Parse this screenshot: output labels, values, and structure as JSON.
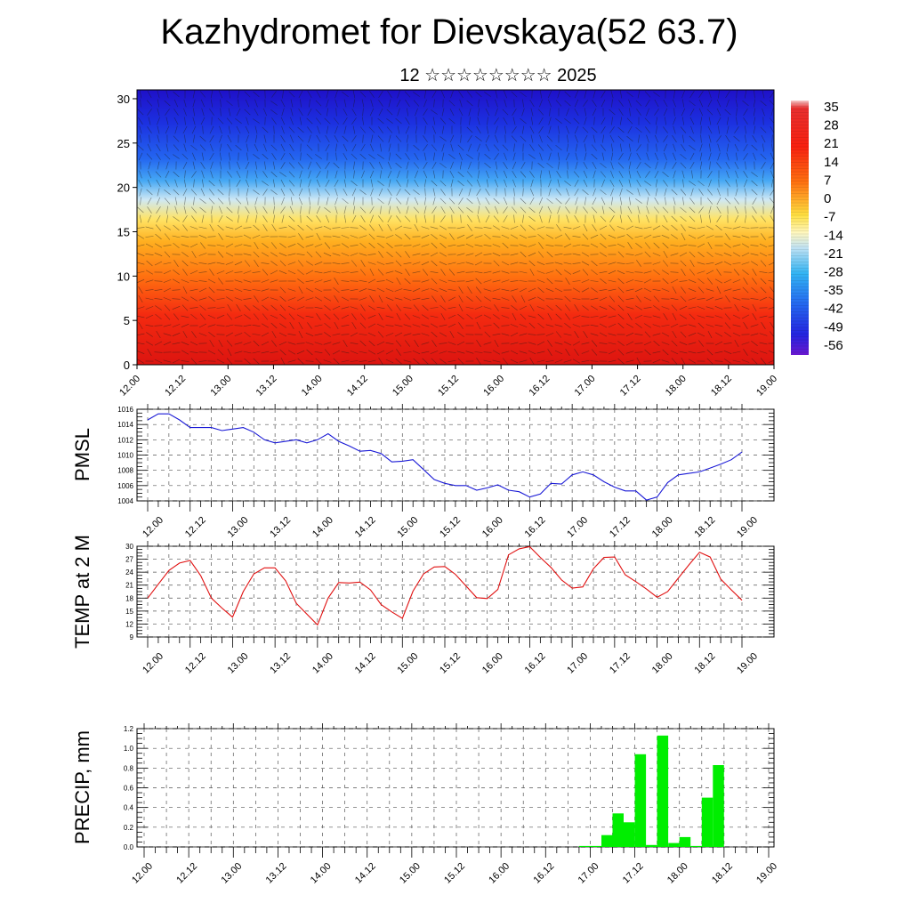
{
  "title": "Kazhydromet for Dievskaya(52 63.7)",
  "subtitle": "12 ☆☆☆☆☆☆☆☆ 2025",
  "colors": {
    "pmsl_line": "#1a1ad6",
    "temp_line": "#e01010",
    "precip_bar": "#00ee00"
  },
  "chart_data": [
    {
      "type": "heatmap",
      "name": "cross-section",
      "x_tick_labels": [
        "12.00",
        "12.12",
        "13.00",
        "13.12",
        "14.00",
        "14.12",
        "15.00",
        "15.12",
        "16.00",
        "16.12",
        "17.00",
        "17.12",
        "18.00",
        "18.12",
        "19.00"
      ],
      "y_tick_labels": [
        "0",
        "5",
        "10",
        "15",
        "20",
        "25",
        "30"
      ],
      "ylim": [
        0,
        31
      ],
      "colorbar": {
        "labels": [
          "35",
          "28",
          "21",
          "14",
          "7",
          "0",
          "-7",
          "-14",
          "-21",
          "-28",
          "-35",
          "-42",
          "-49",
          "-56"
        ],
        "range": [
          -60,
          35
        ]
      }
    },
    {
      "type": "line",
      "name": "pmsl",
      "ylabel": "PMSL",
      "ylim": [
        1004,
        1016
      ],
      "y_tick_labels": [
        "1004",
        "1006",
        "1008",
        "1010",
        "1012",
        "1014",
        "1016"
      ],
      "x_tick_labels": [
        "12.00",
        "12.12",
        "13.00",
        "13.12",
        "14.00",
        "14.12",
        "15.00",
        "15.12",
        "16.00",
        "16.12",
        "17.00",
        "17.12",
        "18.00",
        "18.12",
        "19.00"
      ],
      "x": [
        0,
        3,
        6,
        9,
        12,
        15,
        18,
        21,
        24,
        27,
        30,
        33,
        36,
        39,
        42,
        45,
        48,
        51,
        54,
        57,
        60,
        63,
        66,
        69,
        72,
        75,
        78,
        81,
        84,
        87,
        90,
        93,
        96,
        99,
        102,
        105,
        108,
        111,
        114,
        117,
        120,
        123,
        126,
        129,
        132,
        135,
        138,
        141,
        144,
        147,
        150,
        153,
        156,
        159,
        162,
        165,
        168
      ],
      "values": [
        1014.6,
        1015.4,
        1015.4,
        1014.6,
        1013.6,
        1013.6,
        1013.6,
        1013.2,
        1013.4,
        1013.6,
        1013.0,
        1012.0,
        1011.6,
        1011.8,
        1012.0,
        1011.6,
        1012.0,
        1012.8,
        1011.8,
        1011.2,
        1010.5,
        1010.6,
        1010.2,
        1009.1,
        1009.2,
        1009.4,
        1008.1,
        1006.8,
        1006.3,
        1006.0,
        1006.0,
        1005.4,
        1005.7,
        1006.1,
        1005.4,
        1005.2,
        1004.5,
        1004.9,
        1006.3,
        1006.2,
        1007.4,
        1007.8,
        1007.4,
        1006.5,
        1005.8,
        1005.3,
        1005.3,
        1004.1,
        1004.5,
        1006.4,
        1007.4,
        1007.6,
        1007.8,
        1008.3,
        1008.8,
        1009.4,
        1010.4
      ]
    },
    {
      "type": "line",
      "name": "temp",
      "ylabel": "TEMP at 2 M",
      "ylim": [
        9,
        30
      ],
      "y_tick_labels": [
        "9",
        "12",
        "15",
        "18",
        "21",
        "24",
        "27",
        "30"
      ],
      "x_tick_labels": [
        "12.00",
        "12.12",
        "13.00",
        "13.12",
        "14.00",
        "14.12",
        "15.00",
        "15.12",
        "16.00",
        "16.12",
        "17.00",
        "17.12",
        "18.00",
        "18.12",
        "19.00"
      ],
      "x": [
        0,
        3,
        6,
        9,
        12,
        15,
        18,
        21,
        24,
        27,
        30,
        33,
        36,
        39,
        42,
        45,
        48,
        51,
        54,
        57,
        60,
        63,
        66,
        69,
        72,
        75,
        78,
        81,
        84,
        87,
        90,
        93,
        96,
        99,
        102,
        105,
        108,
        111,
        114,
        117,
        120,
        123,
        126,
        129,
        132,
        135,
        138,
        141,
        144,
        147,
        150,
        153,
        156,
        159,
        162,
        165,
        168
      ],
      "values": [
        18.0,
        21.2,
        24.4,
        26.1,
        26.7,
        23.2,
        18.0,
        15.7,
        13.6,
        19.5,
        23.6,
        25.0,
        25.0,
        22.0,
        16.8,
        14.3,
        11.8,
        18.0,
        21.6,
        21.5,
        21.7,
        19.9,
        16.5,
        14.8,
        13.3,
        19.6,
        23.6,
        25.2,
        25.3,
        23.5,
        20.8,
        18.1,
        17.9,
        20.0,
        28.0,
        29.4,
        29.9,
        27.4,
        25.1,
        22.2,
        20.3,
        20.6,
        24.8,
        27.4,
        27.5,
        23.4,
        21.8,
        20.1,
        18.2,
        19.5,
        22.6,
        25.7,
        28.6,
        27.5,
        22.4,
        19.9,
        17.5
      ]
    },
    {
      "type": "bar",
      "name": "precip",
      "ylabel": "PRECIP, mm",
      "ylim": [
        0,
        1.2
      ],
      "y_tick_labels": [
        "0.0",
        "0.2",
        "0.4",
        "0.6",
        "0.8",
        "1.0",
        "1.2"
      ],
      "x_tick_labels": [
        "12.00",
        "12.12",
        "13.00",
        "13.12",
        "14.00",
        "14.12",
        "15.00",
        "15.12",
        "16.00",
        "16.12",
        "17.00",
        "17.12",
        "18.00",
        "18.12",
        "19.00"
      ],
      "bar_width_hours": 3,
      "x": [
        117,
        120,
        123,
        126,
        129,
        132,
        135,
        138,
        141,
        144,
        147,
        150,
        153
      ],
      "values": [
        0.01,
        0.01,
        0.12,
        0.34,
        0.25,
        0.94,
        0.02,
        1.13,
        0.04,
        0.1,
        0.01,
        0.5,
        0.83
      ]
    }
  ]
}
